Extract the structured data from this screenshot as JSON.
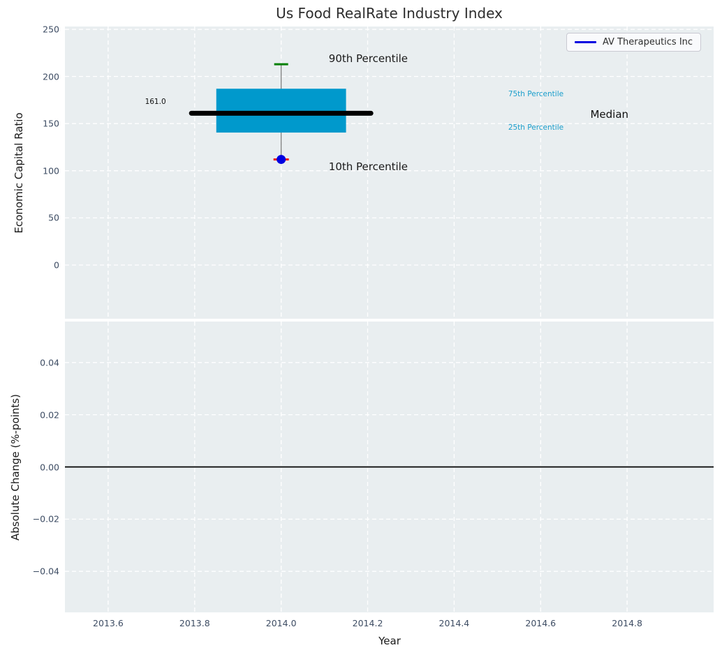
{
  "figure": {
    "title": "Us Food RealRate Industry Index",
    "plot_background": "#e9eef0",
    "grid_color": "#ffffff",
    "tick_color": "#3d4c63",
    "text_color": "#1a1a1a"
  },
  "legend": {
    "label": "AV Therapeutics Inc",
    "line_color": "#0000e0"
  },
  "chart_data": [
    {
      "type": "box",
      "title": "Us Food RealRate Industry Index",
      "ylabel": "Economic Capital Ratio",
      "xlim": [
        2013.5,
        2015.0
      ],
      "ylim": [
        -57,
        253
      ],
      "yticks": [
        250,
        200,
        150,
        100,
        50,
        0
      ],
      "ytick_labels": [
        "250",
        "200",
        "150",
        "100",
        "50",
        "0"
      ],
      "xgrid": [
        2013.6,
        2013.8,
        2014.0,
        2014.2,
        2014.4,
        2014.6,
        2014.8
      ],
      "grid": true,
      "legend_position": "upper right",
      "box": {
        "x": 2014.0,
        "p10": 112,
        "p25": 140.5,
        "median": 161.0,
        "p75": 187,
        "p90": 213,
        "box_width": 0.3,
        "median_width": 0.415,
        "box_color": "#0099cc",
        "median_color": "#000000",
        "whisker_color": "#777777",
        "p90_cap_color": "#008000",
        "p10_cap_color": "#ee1111"
      },
      "series": [
        {
          "name": "AV Therapeutics Inc",
          "x": [
            2014.0
          ],
          "y": [
            112
          ],
          "color": "#0000e0",
          "marker": "circle"
        }
      ],
      "annotations": [
        {
          "text": "90th Percentile",
          "x": 2014.11,
          "y": 219,
          "color": "#1a1a1a",
          "size": 15
        },
        {
          "text": "10th Percentile",
          "x": 2014.11,
          "y": 104,
          "color": "#1a1a1a",
          "size": 15
        },
        {
          "text": "75th Percentile",
          "x": 2014.525,
          "y": 181,
          "color": "#1a9ecc",
          "size": 10.5
        },
        {
          "text": "25th Percentile",
          "x": 2014.525,
          "y": 146,
          "color": "#1a9ecc",
          "size": 10.5
        },
        {
          "text": "Median",
          "x": 2014.715,
          "y": 160,
          "color": "#111111",
          "size": 15
        },
        {
          "text": "161.0",
          "x": 2013.685,
          "y": 173,
          "color": "#111111",
          "size": 10.5
        }
      ]
    },
    {
      "type": "line",
      "ylabel": "Absolute Change (%-points)",
      "xlabel": "Year",
      "xlim": [
        2013.5,
        2015.0
      ],
      "ylim": [
        -0.0557,
        0.0557
      ],
      "yticks": [
        0.04,
        0.02,
        0.0,
        -0.02,
        -0.04
      ],
      "ytick_labels": [
        "0.04",
        "0.02",
        "0.00",
        "−0.02",
        "−0.04"
      ],
      "xticks": [
        2013.6,
        2013.8,
        2014.0,
        2014.2,
        2014.4,
        2014.6,
        2014.8
      ],
      "xtick_labels": [
        "2013.6",
        "2013.8",
        "2014.0",
        "2014.2",
        "2014.4",
        "2014.6",
        "2014.8"
      ],
      "zero_line": {
        "y": 0.0,
        "color": "#000000"
      },
      "grid": true,
      "series": []
    }
  ]
}
